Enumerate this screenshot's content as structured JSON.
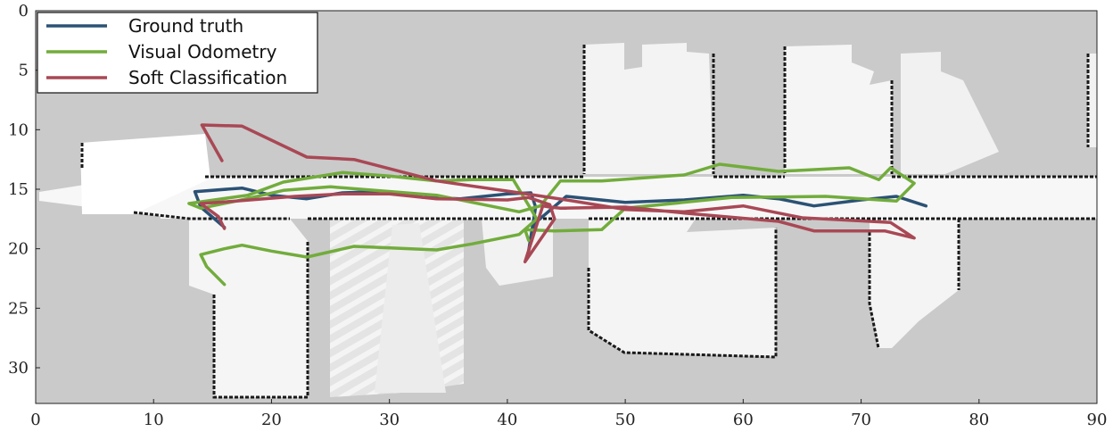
{
  "chart_data": {
    "type": "line",
    "title": "",
    "xlabel": "",
    "ylabel": "",
    "xlim": [
      0,
      90
    ],
    "ylim": [
      33,
      0
    ],
    "y_axis_inverted": true,
    "grid": false,
    "legend_placement": "top-left",
    "x_ticks": [
      "0",
      "10",
      "20",
      "30",
      "40",
      "50",
      "60",
      "70",
      "80",
      "90"
    ],
    "y_ticks": [
      "0",
      "5",
      "10",
      "15",
      "20",
      "25",
      "30"
    ],
    "background": "occupancy grid map (gray unknown area, white free space, black obstacles)",
    "series": [
      {
        "name": "Ground truth",
        "color": "#2b5275",
        "points": [
          [
            16.0,
            18.2
          ],
          [
            14.0,
            16.5
          ],
          [
            13.5,
            15.2
          ],
          [
            17.5,
            14.9
          ],
          [
            20.0,
            15.5
          ],
          [
            23.0,
            15.8
          ],
          [
            26.0,
            15.3
          ],
          [
            29.0,
            15.2
          ],
          [
            33.0,
            15.7
          ],
          [
            36.0,
            15.8
          ],
          [
            40.0,
            15.4
          ],
          [
            42.0,
            15.3
          ],
          [
            42.4,
            16.5
          ],
          [
            41.8,
            20.2
          ],
          [
            42.4,
            17.8
          ],
          [
            45.0,
            15.6
          ],
          [
            50.0,
            16.1
          ],
          [
            55.0,
            15.9
          ],
          [
            60.0,
            15.5
          ],
          [
            63.0,
            15.8
          ],
          [
            66.0,
            16.4
          ],
          [
            70.0,
            15.9
          ],
          [
            73.0,
            15.6
          ],
          [
            75.5,
            16.4
          ]
        ]
      },
      {
        "name": "Visual Odometry",
        "color": "#72ac3c",
        "points": [
          [
            16.0,
            23.0
          ],
          [
            14.5,
            21.5
          ],
          [
            14.0,
            20.5
          ],
          [
            16.0,
            20.0
          ],
          [
            17.5,
            19.7
          ],
          [
            20.0,
            20.2
          ],
          [
            23.0,
            20.7
          ],
          [
            27.0,
            19.8
          ],
          [
            34.0,
            20.1
          ],
          [
            37.0,
            19.6
          ],
          [
            41.0,
            18.8
          ],
          [
            42.5,
            17.5
          ],
          [
            40.5,
            14.2
          ],
          [
            37.0,
            14.2
          ],
          [
            34.0,
            14.3
          ],
          [
            30.0,
            13.9
          ],
          [
            26.0,
            13.6
          ],
          [
            21.0,
            14.4
          ],
          [
            18.0,
            15.5
          ],
          [
            13.0,
            16.2
          ],
          [
            14.0,
            16.6
          ],
          [
            17.0,
            16.0
          ],
          [
            21.0,
            15.1
          ],
          [
            25.0,
            14.8
          ],
          [
            34.0,
            15.5
          ],
          [
            41.0,
            16.9
          ],
          [
            42.8,
            16.4
          ],
          [
            44.5,
            14.3
          ],
          [
            48.0,
            14.3
          ],
          [
            55.0,
            13.8
          ],
          [
            58.0,
            12.9
          ],
          [
            63.0,
            13.5
          ],
          [
            69.0,
            13.2
          ],
          [
            71.5,
            14.2
          ],
          [
            72.5,
            13.2
          ],
          [
            74.5,
            14.5
          ],
          [
            73.0,
            16.0
          ],
          [
            67.0,
            15.6
          ],
          [
            59.0,
            15.7
          ],
          [
            50.0,
            16.6
          ],
          [
            48.0,
            18.4
          ],
          [
            44.0,
            18.5
          ],
          [
            41.5,
            18.4
          ],
          [
            41.8,
            19.3
          ]
        ]
      },
      {
        "name": "Soft Classification",
        "color": "#a94855",
        "points": [
          [
            15.8,
            12.6
          ],
          [
            14.1,
            9.6
          ],
          [
            17.5,
            9.7
          ],
          [
            23.0,
            12.3
          ],
          [
            27.0,
            12.5
          ],
          [
            34.0,
            14.3
          ],
          [
            41.0,
            15.3
          ],
          [
            45.0,
            15.9
          ],
          [
            50.0,
            16.7
          ],
          [
            55.0,
            16.9
          ],
          [
            60.0,
            16.4
          ],
          [
            65.0,
            17.4
          ],
          [
            69.0,
            17.6
          ],
          [
            72.5,
            17.8
          ],
          [
            74.5,
            19.1
          ],
          [
            72.0,
            18.5
          ],
          [
            66.0,
            18.5
          ],
          [
            63.0,
            17.7
          ],
          [
            55.0,
            17.0
          ],
          [
            50.0,
            16.5
          ],
          [
            44.5,
            16.6
          ],
          [
            43.6,
            16.5
          ],
          [
            43.0,
            16.4
          ],
          [
            41.5,
            21.1
          ],
          [
            44.0,
            17.5
          ],
          [
            43.6,
            16.3
          ],
          [
            41.8,
            15.7
          ],
          [
            40.0,
            15.9
          ],
          [
            34.0,
            15.8
          ],
          [
            30.0,
            15.4
          ],
          [
            26.0,
            15.4
          ],
          [
            22.0,
            15.6
          ],
          [
            17.0,
            16.0
          ],
          [
            14.0,
            16.2
          ],
          [
            15.5,
            17.3
          ],
          [
            16.0,
            18.3
          ]
        ]
      }
    ]
  }
}
